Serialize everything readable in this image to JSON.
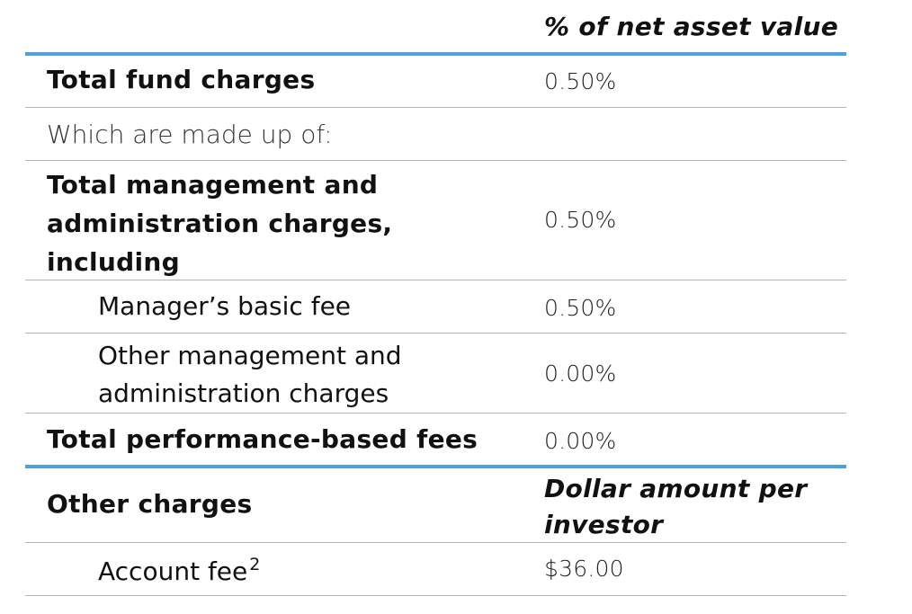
{
  "header": {
    "column_heading": "% of net asset value"
  },
  "rows": [
    {
      "label": "Total fund charges",
      "value": "0.50%"
    },
    {
      "label": "Which are made up of:",
      "value": ""
    },
    {
      "label_lines": [
        "Total management and",
        "administration charges,",
        "including"
      ],
      "value": "0.50%"
    },
    {
      "label": "Manager’s basic fee",
      "value": "0.50%"
    },
    {
      "label_lines": [
        "Other management and",
        "administration charges"
      ],
      "value": "0.00%"
    },
    {
      "label": "Total performance-based fees",
      "value": "0.00%"
    }
  ],
  "other_section": {
    "label": "Other charges",
    "column_heading_lines": [
      "Dollar amount per",
      "investor"
    ],
    "rows": [
      {
        "label": "Account fee",
        "footnote": "2",
        "value": "$36.00"
      }
    ]
  },
  "colors": {
    "accent_rule": "#4aa3df",
    "divider": "#b5b5b5"
  }
}
